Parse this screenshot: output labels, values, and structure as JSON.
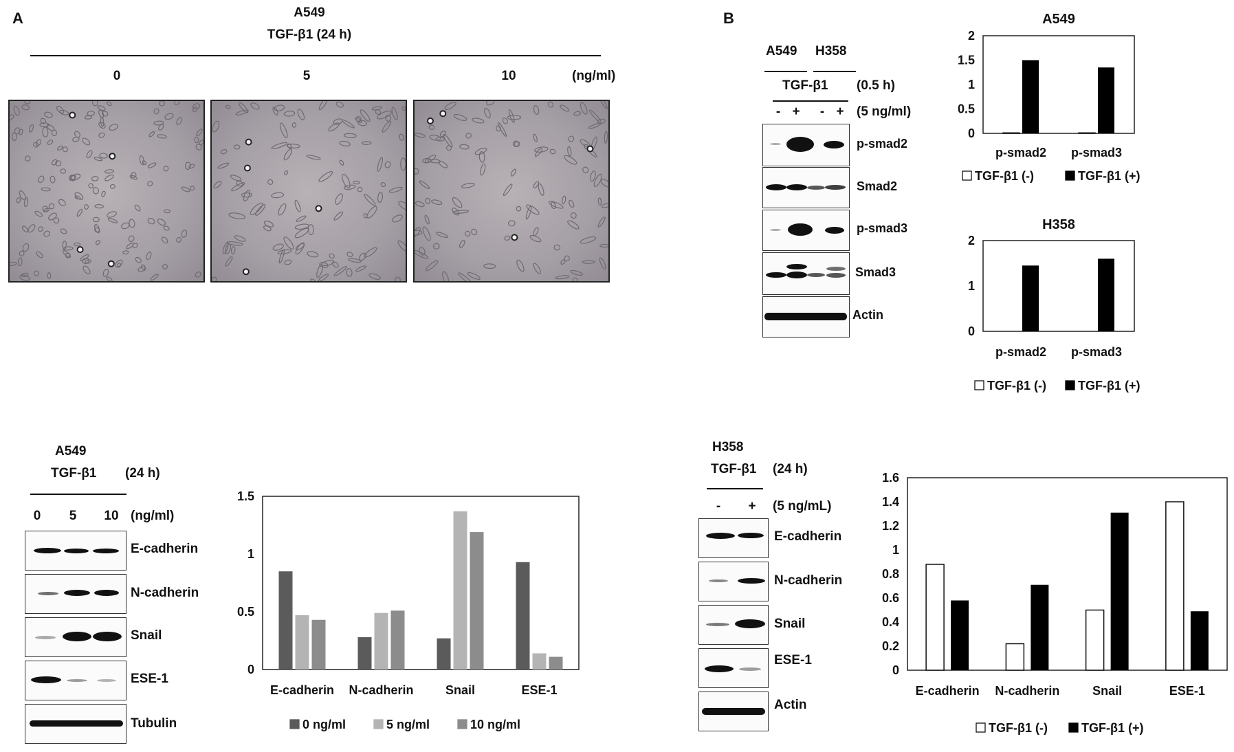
{
  "panelA": {
    "letter": "A",
    "cell_line": "A549",
    "treatment": "TGF-β1 (24 h)",
    "doses": [
      "0",
      "5",
      "10"
    ],
    "dose_unit": "(ng/ml)"
  },
  "panelB": {
    "letter": "B",
    "lines": [
      "A549",
      "H358"
    ],
    "treatment": "TGF-β1",
    "time": "(0.5 h)",
    "conc": "(5 ng/ml)",
    "signs": [
      "-",
      "+",
      "-",
      "+"
    ],
    "bands": [
      "p-smad2",
      "Smad2",
      "p-smad3",
      "Smad3",
      "Actin"
    ]
  },
  "blotC": {
    "cell_line": "A549",
    "treatment": "TGF-β1",
    "time": "(24 h)",
    "doses": [
      "0",
      "5",
      "10"
    ],
    "dose_unit": "(ng/ml)",
    "bands": [
      "E-cadherin",
      "N-cadherin",
      "Snail",
      "ESE-1",
      "Tubulin"
    ]
  },
  "blotD": {
    "cell_line": "H358",
    "treatment": "TGF-β1",
    "time": "(24 h)",
    "signs": [
      "-",
      "+"
    ],
    "conc": "(5 ng/mL)",
    "bands": [
      "E-cadherin",
      "N-cadherin",
      "Snail",
      "ESE-1",
      "Actin"
    ]
  },
  "chart_data": [
    {
      "type": "bar",
      "title": "A549",
      "categories": [
        "p-smad2",
        "p-smad3"
      ],
      "series": [
        {
          "name": "TGF-β1 (-)",
          "values": [
            0.01,
            0.01
          ]
        },
        {
          "name": "TGF-β1 (+)",
          "values": [
            1.5,
            1.35
          ]
        }
      ],
      "ylim": [
        0,
        2
      ],
      "yticks": [
        "0",
        "0.5",
        "1",
        "1.5",
        "2"
      ],
      "colors": [
        "#ffffff",
        "#000000"
      ]
    },
    {
      "type": "bar",
      "title": "H358",
      "categories": [
        "p-smad2",
        "p-smad3"
      ],
      "series": [
        {
          "name": "TGF-β1 (-)",
          "values": [
            0,
            0
          ]
        },
        {
          "name": "TGF-β1 (+)",
          "values": [
            1.45,
            1.6
          ]
        }
      ],
      "ylim": [
        0,
        2
      ],
      "yticks": [
        "0",
        "1",
        "2"
      ],
      "colors": [
        "#ffffff",
        "#000000"
      ]
    },
    {
      "type": "bar",
      "categories": [
        "E-cadherin",
        "N-cadherin",
        "Snail",
        "ESE-1"
      ],
      "series": [
        {
          "name": "0 ng/ml",
          "values": [
            0.85,
            0.28,
            0.27,
            0.93
          ]
        },
        {
          "name": "5 ng/ml",
          "values": [
            0.47,
            0.49,
            1.37,
            0.14
          ]
        },
        {
          "name": "10 ng/ml",
          "values": [
            0.43,
            0.51,
            1.19,
            0.11
          ]
        }
      ],
      "ylim": [
        0,
        1.5
      ],
      "yticks": [
        "0",
        "0.5",
        "1",
        "1.5"
      ],
      "colors": [
        "#5b5b5b",
        "#b4b4b4",
        "#8c8c8c"
      ]
    },
    {
      "type": "bar",
      "categories": [
        "E-cadherin",
        "N-cadherin",
        "Snail",
        "ESE-1"
      ],
      "series": [
        {
          "name": "TGF-β1 (-)",
          "values": [
            0.88,
            0.22,
            0.5,
            1.4
          ]
        },
        {
          "name": "TGF-β1 (+)",
          "values": [
            0.58,
            0.71,
            1.31,
            0.49
          ]
        }
      ],
      "ylim": [
        0,
        1.6
      ],
      "yticks": [
        "0",
        "0.2",
        "0.4",
        "0.6",
        "0.8",
        "1",
        "1.2",
        "1.4",
        "1.6"
      ],
      "colors": [
        "#ffffff",
        "#000000"
      ]
    }
  ]
}
